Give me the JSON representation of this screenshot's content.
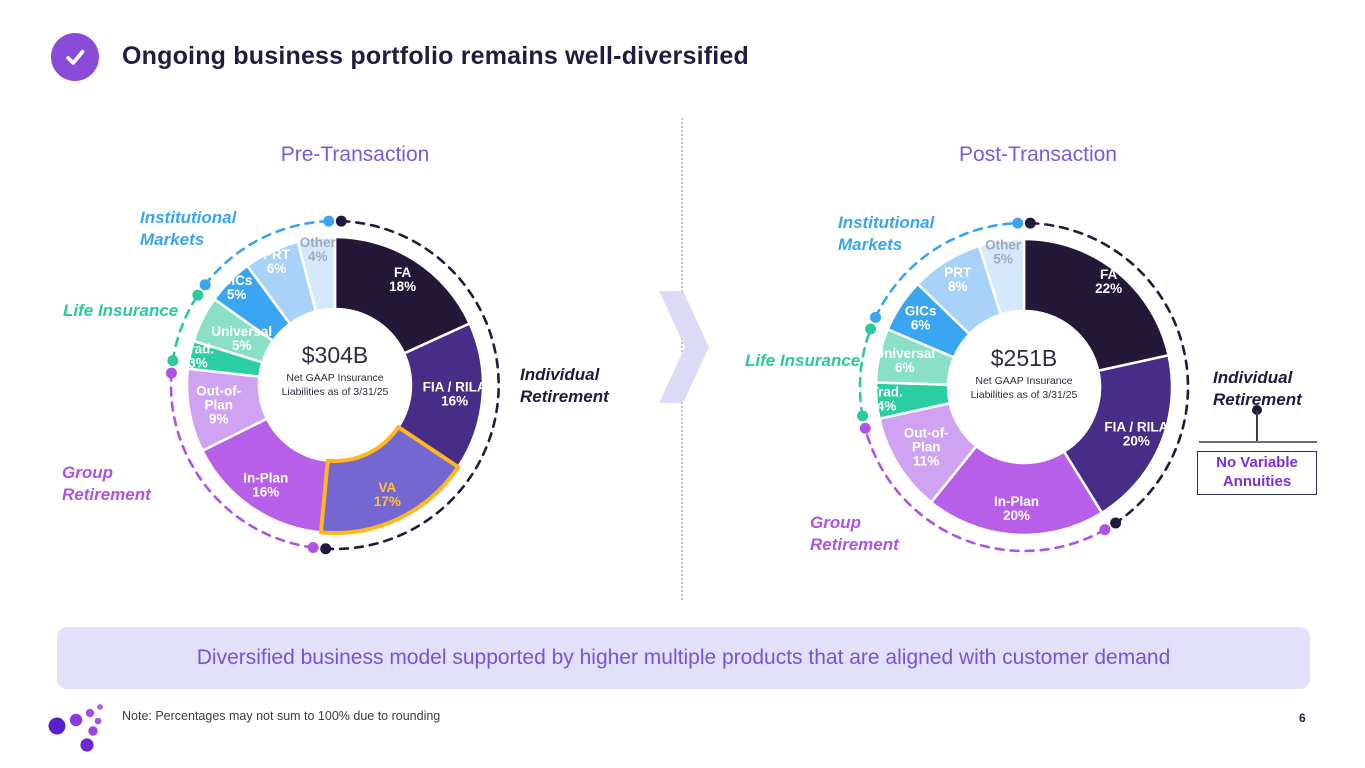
{
  "header": {
    "title": "Ongoing business portfolio remains well-diversified",
    "check_icon": "checkmark-icon"
  },
  "chart_data": [
    {
      "type": "pie",
      "subtype": "donut",
      "title": "Pre-Transaction",
      "center": {
        "value": "$304B",
        "caption": "Net GAAP Insurance Liabilities as of 3/31/25"
      },
      "legend_position": "around",
      "segments": [
        {
          "label": "FA",
          "pct": "18%",
          "value": 18,
          "lines": [
            "FA"
          ],
          "color": "#241838",
          "text_color": "#ffffff",
          "group": "individual",
          "label_r": 125
        },
        {
          "label": "FIA / RILA",
          "pct": "16%",
          "value": 16,
          "lines": [
            "FIA / RILA"
          ],
          "color": "#462d87",
          "text_color": "#ffffff",
          "group": "individual",
          "label_r": 120
        },
        {
          "label": "VA",
          "pct": "17%",
          "value": 17,
          "lines": [
            "VA"
          ],
          "color": "#7567d2",
          "text_color": "#ffc233",
          "group": "individual",
          "label_r": 122,
          "highlight": "#ffb81c"
        },
        {
          "label": "In-Plan",
          "pct": "16%",
          "value": 16,
          "lines": [
            "In-Plan"
          ],
          "color": "#b75fe8",
          "text_color": "#ffffff",
          "group": "group_retirement",
          "label_r": 122
        },
        {
          "label": "Out-of-Plan",
          "pct": "9%",
          "value": 9,
          "lines": [
            "Out-of-",
            "Plan"
          ],
          "color": "#d0a3f2",
          "text_color": "#ffffff",
          "group": "group_retirement",
          "label_r": 118
        },
        {
          "label": "Trad.",
          "pct": "3%",
          "value": 3,
          "lines": [
            "Trad."
          ],
          "color": "#2bcda3",
          "text_color": "#ffffff",
          "group": "life",
          "label_r": 140
        },
        {
          "label": "Universal",
          "pct": "5%",
          "value": 5,
          "lines": [
            "Universal"
          ],
          "color": "#8ae0c6",
          "text_color": "#ffffff",
          "group": "life",
          "label_r": 104
        },
        {
          "label": "GICs",
          "pct": "5%",
          "value": 5,
          "lines": [
            "GICs"
          ],
          "color": "#3aa6f2",
          "text_color": "#ffffff",
          "group": "institutional",
          "label_r": 138
        },
        {
          "label": "PRT",
          "pct": "6%",
          "value": 6,
          "lines": [
            "PRT"
          ],
          "color": "#a9d2f8",
          "text_color": "#ffffff",
          "group": "institutional",
          "label_r": 136
        },
        {
          "label": "Other",
          "pct": "4%",
          "value": 4,
          "lines": [
            "Other"
          ],
          "color": "#d6e9fc",
          "text_color": "#9fabbc",
          "group": "institutional",
          "label_r": 136
        }
      ],
      "groups": [
        {
          "id": "individual",
          "label": "Individual Retirement",
          "color": "#221a3e"
        },
        {
          "id": "group_retirement",
          "label": "Group Retirement",
          "color": "#ae53e4"
        },
        {
          "id": "life",
          "label": "Life Insurance",
          "color": "#2bc9a0"
        },
        {
          "id": "institutional",
          "label": "Institutional Markets",
          "color": "#3aa4f0"
        }
      ]
    },
    {
      "type": "pie",
      "subtype": "donut",
      "title": "Post-Transaction",
      "center": {
        "value": "$251B",
        "caption": "Net GAAP Insurance Liabilities as of 3/31/25"
      },
      "legend_position": "around",
      "segments": [
        {
          "label": "FA",
          "pct": "22%",
          "value": 22,
          "lines": [
            "FA"
          ],
          "color": "#241838",
          "text_color": "#ffffff",
          "group": "individual",
          "label_r": 135
        },
        {
          "label": "FIA / RILA",
          "pct": "20%",
          "value": 20,
          "lines": [
            "FIA / RILA"
          ],
          "color": "#462d87",
          "text_color": "#ffffff",
          "group": "individual",
          "label_r": 122
        },
        {
          "label": "In-Plan",
          "pct": "20%",
          "value": 20,
          "lines": [
            "In-Plan"
          ],
          "color": "#b75fe8",
          "text_color": "#ffffff",
          "group": "group_retirement",
          "label_r": 122
        },
        {
          "label": "Out-of-Plan",
          "pct": "11%",
          "value": 11,
          "lines": [
            "Out-of-",
            "Plan"
          ],
          "color": "#d0a3f2",
          "text_color": "#ffffff",
          "group": "group_retirement",
          "label_r": 115
        },
        {
          "label": "Trad.",
          "pct": "4%",
          "value": 4,
          "lines": [
            "Trad."
          ],
          "color": "#2bcda3",
          "text_color": "#ffffff",
          "group": "life",
          "label_r": 138
        },
        {
          "label": "Universal",
          "pct": "6%",
          "value": 6,
          "lines": [
            "Universal"
          ],
          "color": "#8ae0c6",
          "text_color": "#ffffff",
          "group": "life",
          "label_r": 122
        },
        {
          "label": "GICs",
          "pct": "6%",
          "value": 6,
          "lines": [
            "GICs"
          ],
          "color": "#3aa6f2",
          "text_color": "#ffffff",
          "group": "institutional",
          "label_r": 124
        },
        {
          "label": "PRT",
          "pct": "8%",
          "value": 8,
          "lines": [
            "PRT"
          ],
          "color": "#a9d2f8",
          "text_color": "#ffffff",
          "group": "institutional",
          "label_r": 126
        },
        {
          "label": "Other",
          "pct": "5%",
          "value": 5,
          "lines": [
            "Other"
          ],
          "color": "#d6e9fc",
          "text_color": "#9fabbc",
          "group": "institutional",
          "label_r": 136
        }
      ],
      "groups": [
        {
          "id": "individual",
          "label": "Individual Retirement",
          "color": "#221a3e"
        },
        {
          "id": "group_retirement",
          "label": "Group Retirement",
          "color": "#ae53e4"
        },
        {
          "id": "life",
          "label": "Life Insurance",
          "color": "#2bc9a0"
        },
        {
          "id": "institutional",
          "label": "Institutional Markets",
          "color": "#3aa4f0"
        }
      ]
    }
  ],
  "annotation": {
    "text": "No Variable Annuities"
  },
  "banner": {
    "text": "Diversified business model supported by higher multiple products that are aligned with customer demand"
  },
  "footer": {
    "note": "Note: Percentages may not sum to 100% due to rounding",
    "page_number": "6"
  },
  "colors": {
    "accent_purple": "#8a4bd8",
    "title_navy": "#241b40",
    "chart_title_purple": "#7a5ad6",
    "banner_bg": "#e3e0f9",
    "banner_text": "#7a52d8",
    "highlight_gold": "#ffb81c"
  }
}
